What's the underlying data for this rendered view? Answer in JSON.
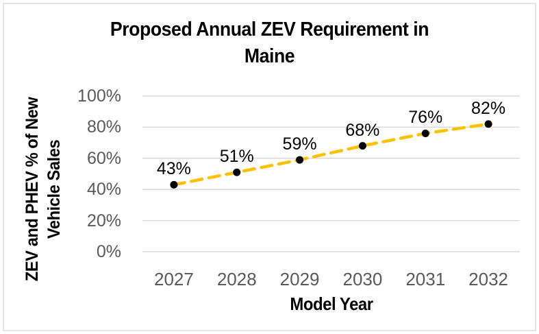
{
  "frame": {
    "background": "#FFFFFF",
    "border_color": "#E4E4E4"
  },
  "chart_data": {
    "type": "line",
    "title": "Proposed Annual ZEV Requirement in Maine",
    "title_lines": [
      "Proposed Annual ZEV Requirement in",
      "Maine"
    ],
    "xlabel": "Model Year",
    "ylabel": "ZEV and PHEV % of New Vehicle Sales",
    "ylabel_lines": [
      "ZEV and PHEV % of New",
      "Vehicle Sales"
    ],
    "categories": [
      "2027",
      "2028",
      "2029",
      "2030",
      "2031",
      "2032"
    ],
    "values": [
      43,
      51,
      59,
      68,
      76,
      82
    ],
    "data_labels": [
      "43%",
      "51%",
      "59%",
      "68%",
      "76%",
      "82%"
    ],
    "yticks": [
      "0%",
      "20%",
      "40%",
      "60%",
      "80%",
      "100%"
    ],
    "ytick_values": [
      0,
      20,
      40,
      60,
      80,
      100
    ],
    "ylim": [
      0,
      100
    ],
    "grid": "horizontal",
    "legend": "none",
    "line_style": "dashed",
    "line_color": "#FFC000",
    "marker_color": "#000000",
    "gridline_color": "#D9D9D9",
    "tick_label_color": "#595959"
  }
}
